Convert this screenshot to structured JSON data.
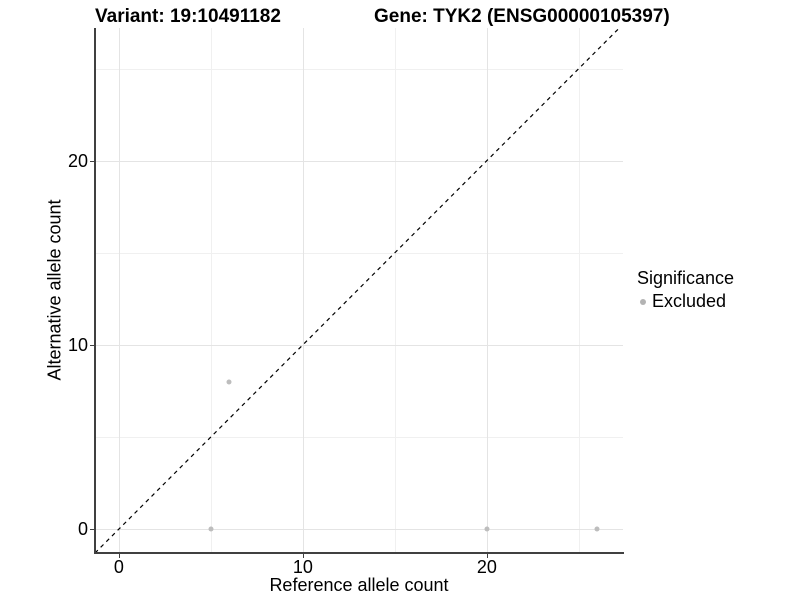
{
  "chart_data": {
    "type": "scatter",
    "title_left": "Variant: 19:10491182",
    "title_right": "Gene: TYK2 (ENSG00000105397)",
    "xlabel": "Reference allele count",
    "ylabel": "Alternative allele count",
    "xlim": [
      -1.3,
      27.4
    ],
    "ylim": [
      -1.3,
      27.2
    ],
    "x_ticks": [
      0,
      10,
      20
    ],
    "x_minor_ticks": [
      5,
      15,
      25
    ],
    "y_ticks": [
      0,
      10,
      20
    ],
    "y_minor_ticks": [
      5,
      15,
      25
    ],
    "grid": "major and minor gridlines on, white panel",
    "identity_line": {
      "slope": 1,
      "intercept": 0,
      "style": "dashed",
      "color": "#000000"
    },
    "series": [
      {
        "name": "Excluded",
        "color": "#bdbdbd",
        "points": [
          [
            5,
            0
          ],
          [
            6,
            8
          ],
          [
            20,
            0
          ],
          [
            26,
            0
          ]
        ]
      }
    ],
    "legend": {
      "title": "Significance",
      "position": "right",
      "items": [
        {
          "label": "Excluded",
          "color": "#b3b3b3"
        }
      ]
    }
  },
  "colors": {
    "background": "#ffffff",
    "grid_major": "#e4e4e4",
    "grid_minor": "#f0f0f0",
    "axis_line": "#404040",
    "point": "#bdbdbd",
    "text": "#000000"
  }
}
